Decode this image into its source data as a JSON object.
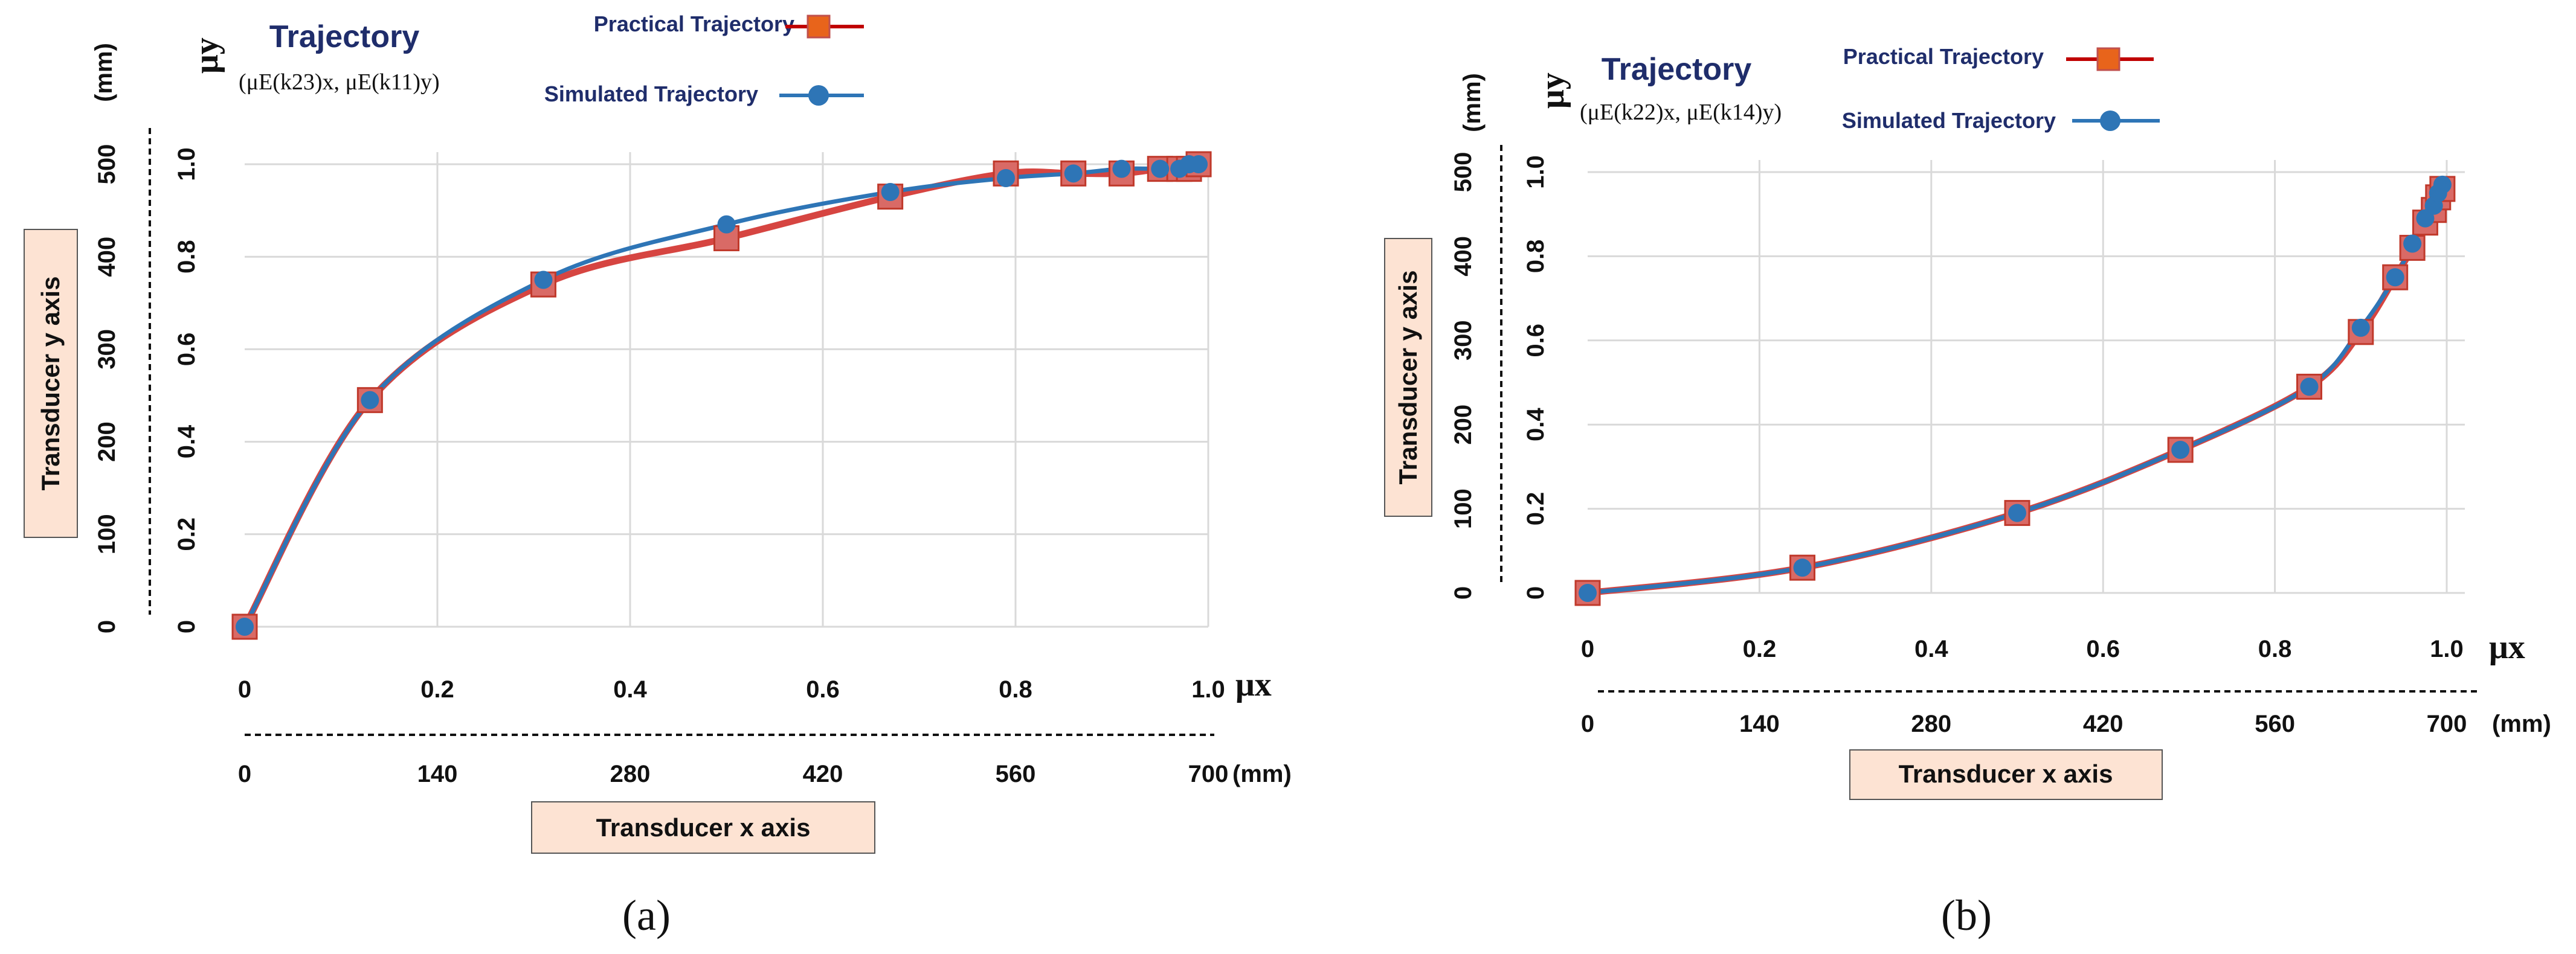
{
  "chart_data": [
    {
      "type": "line",
      "panel": "a",
      "title": "Trajectory",
      "subtitle": "(μE(k23)x, μE(k11)y)",
      "x_axis": {
        "mu_label": "μx",
        "ticks": [
          "0",
          "0.2",
          "0.4",
          "0.6",
          "0.8",
          "1.0"
        ],
        "mm_ticks": [
          "0",
          "140",
          "280",
          "420",
          "560",
          "700"
        ],
        "unit": "(mm)",
        "transducer_label": "Transducer x axis",
        "range": [
          0,
          1
        ]
      },
      "y_axis": {
        "mu_label": "μy",
        "ticks": [
          "0",
          "0.2",
          "0.4",
          "0.6",
          "0.8",
          "1.0"
        ],
        "mm_ticks": [
          "0",
          "100",
          "200",
          "300",
          "400",
          "500"
        ],
        "unit": "(mm)",
        "transducer_label": "Transducer y axis",
        "range": [
          0,
          1
        ]
      },
      "series": [
        {
          "name": "Practical Trajectory",
          "color": "#d64541",
          "marker": "square",
          "x": [
            0,
            0.13,
            0.31,
            0.5,
            0.67,
            0.79,
            0.86,
            0.91,
            0.95,
            0.97,
            0.98,
            0.99
          ],
          "y": [
            0,
            0.49,
            0.74,
            0.84,
            0.93,
            0.98,
            0.98,
            0.98,
            0.99,
            0.99,
            0.99,
            1.0
          ]
        },
        {
          "name": "Simulated Trajectory",
          "color": "#2e75b6",
          "marker": "circle",
          "x": [
            0,
            0.13,
            0.31,
            0.5,
            0.67,
            0.79,
            0.86,
            0.91,
            0.95,
            0.97,
            0.98,
            0.99
          ],
          "y": [
            0,
            0.49,
            0.75,
            0.87,
            0.94,
            0.97,
            0.98,
            0.99,
            0.99,
            0.99,
            1.0,
            1.0
          ]
        }
      ],
      "grid": true,
      "legend_placement": "top"
    },
    {
      "type": "line",
      "panel": "b",
      "title": "Trajectory",
      "subtitle": "(μE(k22)x, μE(k14)y)",
      "x_axis": {
        "mu_label": "μx",
        "ticks": [
          "0",
          "0.2",
          "0.4",
          "0.6",
          "0.8",
          "1.0"
        ],
        "mm_ticks": [
          "0",
          "140",
          "280",
          "420",
          "560",
          "700"
        ],
        "unit": "(mm)",
        "transducer_label": "Transducer x axis",
        "range": [
          0,
          1
        ]
      },
      "y_axis": {
        "mu_label": "μy",
        "ticks": [
          "0",
          "0.2",
          "0.4",
          "0.6",
          "0.8",
          "1.0"
        ],
        "mm_ticks": [
          "0",
          "100",
          "200",
          "300",
          "400",
          "500"
        ],
        "unit": "(mm)",
        "transducer_label": "Transducer y axis",
        "range": [
          0,
          1
        ]
      },
      "series": [
        {
          "name": "Practical Trajectory",
          "color": "#d64541",
          "marker": "square",
          "x": [
            0,
            0.25,
            0.5,
            0.69,
            0.84,
            0.9,
            0.94,
            0.96,
            0.975,
            0.985,
            0.99,
            0.995
          ],
          "y": [
            0,
            0.06,
            0.19,
            0.34,
            0.49,
            0.62,
            0.75,
            0.82,
            0.88,
            0.91,
            0.94,
            0.96
          ]
        },
        {
          "name": "Simulated Trajectory",
          "color": "#2e75b6",
          "marker": "circle",
          "x": [
            0,
            0.25,
            0.5,
            0.69,
            0.84,
            0.9,
            0.94,
            0.96,
            0.975,
            0.985,
            0.99,
            0.995
          ],
          "y": [
            0,
            0.06,
            0.19,
            0.34,
            0.49,
            0.63,
            0.75,
            0.83,
            0.89,
            0.92,
            0.95,
            0.97
          ]
        }
      ],
      "grid": true,
      "legend_placement": "top"
    }
  ],
  "panel_labels": [
    "(a)",
    "(b)"
  ]
}
